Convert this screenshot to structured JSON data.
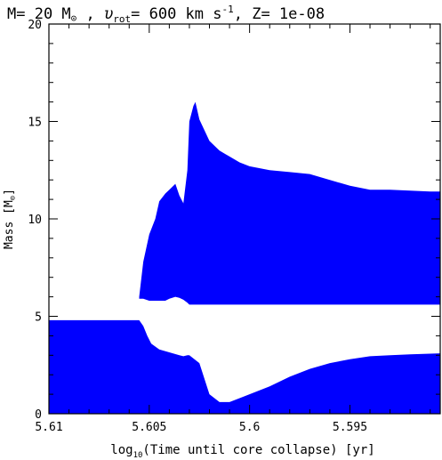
{
  "chart_data": {
    "type": "area",
    "title": {
      "prefix": "M= 20 M",
      "sun_symbol": "⊙",
      "vrot_symbol": "υ",
      "vrot_sub": "rot",
      "vrot_text": "= 600 km s",
      "vrot_exp": "-1",
      "z_text": ", Z= 1e-08"
    },
    "xlabel": {
      "pre": "log",
      "sub": "10",
      "post": "(Time until core collapse) [yr]"
    },
    "ylabel": {
      "pre": "Mass [M",
      "sun": "⊙",
      "post": "]"
    },
    "xlim": [
      5.61,
      5.5905
    ],
    "ylim": [
      0,
      20
    ],
    "x_ticks": [
      5.61,
      5.605,
      5.6,
      5.595
    ],
    "x_tick_labels": [
      "5.61",
      "5.605",
      "5.6",
      "5.595"
    ],
    "x_minor_step": 0.001,
    "y_ticks": [
      0,
      5,
      10,
      15,
      20
    ],
    "y_tick_labels": [
      "0",
      "5",
      "10",
      "15",
      "20"
    ],
    "y_minor_step": 1,
    "fill_color": "#0000ff",
    "regions": [
      {
        "name": "convective core",
        "x": [
          5.61,
          5.6055,
          5.6053,
          5.6051,
          5.6049,
          5.6045,
          5.6035,
          5.6033,
          5.6031,
          5.603,
          5.6025,
          5.602,
          5.6015,
          5.601,
          5.6005,
          5.6,
          5.599,
          5.598,
          5.597,
          5.596,
          5.595,
          5.594,
          5.593,
          5.592,
          5.5905
        ],
        "top": [
          4.8,
          4.8,
          4.5,
          4.0,
          3.6,
          3.3,
          3.0,
          2.95,
          3.0,
          3.0,
          2.6,
          1.0,
          0.6,
          0.6,
          0.8,
          1.0,
          1.4,
          1.9,
          2.3,
          2.6,
          2.8,
          2.95,
          3.0,
          3.05,
          3.1
        ],
        "bottom": [
          0,
          0,
          0,
          0,
          0,
          0,
          0,
          0,
          0,
          0,
          0,
          0,
          0,
          0,
          0,
          0,
          0,
          0,
          0,
          0,
          0,
          0,
          0,
          0,
          0
        ]
      },
      {
        "name": "convective envelope",
        "x": [
          5.6055,
          5.6053,
          5.605,
          5.6047,
          5.6045,
          5.6042,
          5.604,
          5.6037,
          5.6035,
          5.6033,
          5.6031,
          5.603,
          5.6029,
          5.6028,
          5.6027,
          5.6025,
          5.602,
          5.6015,
          5.601,
          5.6005,
          5.6,
          5.599,
          5.598,
          5.597,
          5.596,
          5.595,
          5.594,
          5.593,
          5.592,
          5.591,
          5.5905
        ],
        "top": [
          6.0,
          7.8,
          9.2,
          10.0,
          10.9,
          11.3,
          11.5,
          11.8,
          11.2,
          10.8,
          12.5,
          15.0,
          15.4,
          15.8,
          16.0,
          15.1,
          14.0,
          13.5,
          13.2,
          12.9,
          12.7,
          12.5,
          12.4,
          12.3,
          12.0,
          11.7,
          11.5,
          11.5,
          11.45,
          11.4,
          11.4
        ],
        "bottom": [
          5.9,
          5.9,
          5.8,
          5.8,
          5.8,
          5.8,
          5.9,
          6.0,
          5.95,
          5.85,
          5.7,
          5.6,
          5.6,
          5.6,
          5.6,
          5.6,
          5.6,
          5.6,
          5.6,
          5.6,
          5.6,
          5.6,
          5.6,
          5.6,
          5.6,
          5.6,
          5.6,
          5.6,
          5.6,
          5.6,
          5.6
        ]
      }
    ]
  }
}
